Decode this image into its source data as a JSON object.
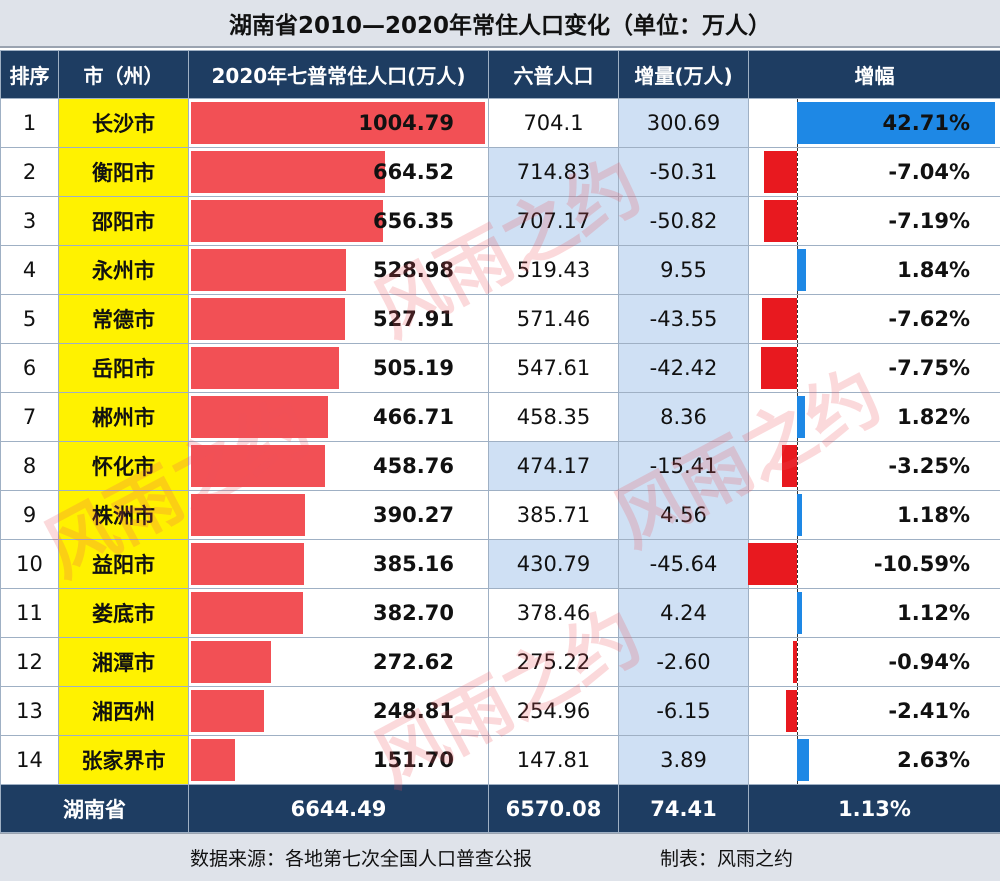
{
  "title": "湖南省2010—2020年常住人口变化（单位：万人）",
  "headers": [
    "排序",
    "市（州）",
    "2020年七普常住人口(万人)",
    "六普人口",
    "增量(万人)",
    "增幅"
  ],
  "colors": {
    "header_bg": "#1e3d62",
    "city_bg": "#fff200",
    "pop_bar": "#f25055",
    "blue_col": "#cfe0f4",
    "rate_pos": "#1e88e5",
    "rate_neg": "#e8191f"
  },
  "chart_data": {
    "type": "table",
    "rows": [
      {
        "rank": "1",
        "city": "长沙市",
        "pop2020": 1004.79,
        "pop2020_label": "1004.79",
        "pop2010": "704.1",
        "increase": "300.69",
        "rate": 42.71,
        "rate_label": "42.71%"
      },
      {
        "rank": "2",
        "city": "衡阳市",
        "pop2020": 664.52,
        "pop2020_label": "664.52",
        "pop2010": "714.83",
        "increase": "-50.31",
        "rate": -7.04,
        "rate_label": "-7.04%"
      },
      {
        "rank": "3",
        "city": "邵阳市",
        "pop2020": 656.35,
        "pop2020_label": "656.35",
        "pop2010": "707.17",
        "increase": "-50.82",
        "rate": -7.19,
        "rate_label": "-7.19%"
      },
      {
        "rank": "4",
        "city": "永州市",
        "pop2020": 528.98,
        "pop2020_label": "528.98",
        "pop2010": "519.43",
        "increase": "9.55",
        "rate": 1.84,
        "rate_label": "1.84%"
      },
      {
        "rank": "5",
        "city": "常德市",
        "pop2020": 527.91,
        "pop2020_label": "527.91",
        "pop2010": "571.46",
        "increase": "-43.55",
        "rate": -7.62,
        "rate_label": "-7.62%"
      },
      {
        "rank": "6",
        "city": "岳阳市",
        "pop2020": 505.19,
        "pop2020_label": "505.19",
        "pop2010": "547.61",
        "increase": "-42.42",
        "rate": -7.75,
        "rate_label": "-7.75%"
      },
      {
        "rank": "7",
        "city": "郴州市",
        "pop2020": 466.71,
        "pop2020_label": "466.71",
        "pop2010": "458.35",
        "increase": "8.36",
        "rate": 1.82,
        "rate_label": "1.82%"
      },
      {
        "rank": "8",
        "city": "怀化市",
        "pop2020": 458.76,
        "pop2020_label": "458.76",
        "pop2010": "474.17",
        "increase": "-15.41",
        "rate": -3.25,
        "rate_label": "-3.25%"
      },
      {
        "rank": "9",
        "city": "株洲市",
        "pop2020": 390.27,
        "pop2020_label": "390.27",
        "pop2010": "385.71",
        "increase": "4.56",
        "rate": 1.18,
        "rate_label": "1.18%"
      },
      {
        "rank": "10",
        "city": "益阳市",
        "pop2020": 385.16,
        "pop2020_label": "385.16",
        "pop2010": "430.79",
        "increase": "-45.64",
        "rate": -10.59,
        "rate_label": "-10.59%"
      },
      {
        "rank": "11",
        "city": "娄底市",
        "pop2020": 382.7,
        "pop2020_label": "382.70",
        "pop2010": "378.46",
        "increase": "4.24",
        "rate": 1.12,
        "rate_label": "1.12%"
      },
      {
        "rank": "12",
        "city": "湘潭市",
        "pop2020": 272.62,
        "pop2020_label": "272.62",
        "pop2010": "275.22",
        "increase": "-2.60",
        "rate": -0.94,
        "rate_label": "-0.94%"
      },
      {
        "rank": "13",
        "city": "湘西州",
        "pop2020": 248.81,
        "pop2020_label": "248.81",
        "pop2010": "254.96",
        "increase": "-6.15",
        "rate": -2.41,
        "rate_label": "-2.41%"
      },
      {
        "rank": "14",
        "city": "张家界市",
        "pop2020": 151.7,
        "pop2020_label": "151.70",
        "pop2010": "147.81",
        "increase": "3.89",
        "rate": 2.63,
        "rate_label": "2.63%"
      }
    ],
    "total": {
      "label": "湖南省",
      "pop2020": "6644.49",
      "pop2010": "6570.08",
      "increase": "74.41",
      "rate": "1.13%"
    }
  },
  "source": "数据来源：各地第七次全国人口普查公报",
  "maker": "制表：风雨之约",
  "watermark": "风雨之约"
}
